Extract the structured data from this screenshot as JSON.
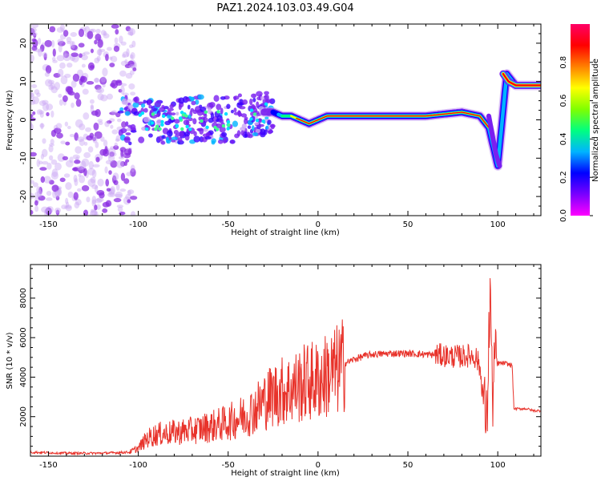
{
  "title": "PAZ1.2024.103.03.49.G04",
  "chart_data": [
    {
      "type": "heatmap",
      "xlabel": "Height of straight line (km)",
      "ylabel": "Frequency (Hz)",
      "xlim": [
        -160,
        124
      ],
      "ylim": [
        -25,
        25
      ],
      "xticks": [
        -150,
        -100,
        -50,
        0,
        50,
        100
      ],
      "xtick_labels": [
        "-150",
        "-100",
        "-50",
        "0",
        "50",
        "100"
      ],
      "yticks": [
        -20,
        -10,
        0,
        10,
        20
      ],
      "ytick_labels": [
        "-20",
        "-10",
        "0",
        "10",
        "20"
      ],
      "colorbar": {
        "label": "Normalized spectral amplitude",
        "range": [
          0,
          1
        ],
        "ticks": [
          0,
          0.2,
          0.4,
          0.6,
          0.8
        ],
        "tick_labels": [
          "0.0",
          "0.2",
          "0.4",
          "0.6",
          "0.8"
        ],
        "colors": [
          "#ff00ff",
          "#7a00ff",
          "#0000ff",
          "#00b4ff",
          "#00ff80",
          "#80ff00",
          "#ffff00",
          "#ff8000",
          "#ff0000",
          "#ff0066"
        ]
      },
      "ridge": {
        "x": [
          -110,
          -90,
          -70,
          -50,
          -30,
          -25,
          -20,
          -15,
          -10,
          -5,
          0,
          5,
          10,
          20,
          40,
          60,
          80,
          90,
          95,
          100,
          105,
          110,
          124
        ],
        "y": [
          0,
          -1,
          0,
          0,
          2,
          2,
          1,
          1,
          0,
          -1,
          0,
          1,
          1,
          1,
          1,
          1,
          2,
          1,
          -2,
          -12,
          12,
          9,
          9
        ]
      },
      "noise_region": {
        "x": [
          -160,
          -102
        ],
        "y": [
          -25,
          25
        ]
      },
      "grid": false
    },
    {
      "type": "line",
      "xlabel": "Height of straight line (km)",
      "ylabel": "SNR (10 * v/v)",
      "xlim": [
        -160,
        124
      ],
      "ylim": [
        0,
        9700
      ],
      "xticks": [
        -150,
        -100,
        -50,
        0,
        50,
        100
      ],
      "xtick_labels": [
        "-150",
        "-100",
        "-50",
        "0",
        "50",
        "100"
      ],
      "yticks": [
        2000,
        4000,
        6000,
        8000
      ],
      "ytick_labels": [
        "2000",
        "4000",
        "6000",
        "8000"
      ],
      "color": "#e8332b",
      "grid": false,
      "series": [
        {
          "x": [
            -160,
            -140,
            -120,
            -105,
            -100,
            -95,
            -90,
            -80,
            -70,
            -60,
            -50,
            -45,
            -40,
            -35,
            -30,
            -25,
            -20,
            -15,
            -10,
            -5,
            0,
            5,
            10,
            15,
            20,
            25,
            30,
            40,
            50,
            60,
            70,
            75,
            80,
            85,
            88,
            90,
            92,
            94,
            95,
            96,
            97,
            98,
            100,
            104,
            108,
            109,
            112,
            116,
            120,
            124
          ],
          "y": [
            200,
            150,
            150,
            200,
            400,
            900,
            1100,
            1200,
            1300,
            1500,
            1700,
            1900,
            2100,
            2400,
            2800,
            3100,
            3300,
            3400,
            3600,
            3800,
            3800,
            4100,
            4300,
            4700,
            4900,
            5050,
            5150,
            5200,
            5200,
            5150,
            5100,
            5050,
            5050,
            5100,
            5000,
            4500,
            3000,
            1500,
            6000,
            8500,
            2500,
            4800,
            4700,
            4700,
            4600,
            2400,
            2400,
            2400,
            2300,
            2300
          ]
        }
      ]
    }
  ]
}
